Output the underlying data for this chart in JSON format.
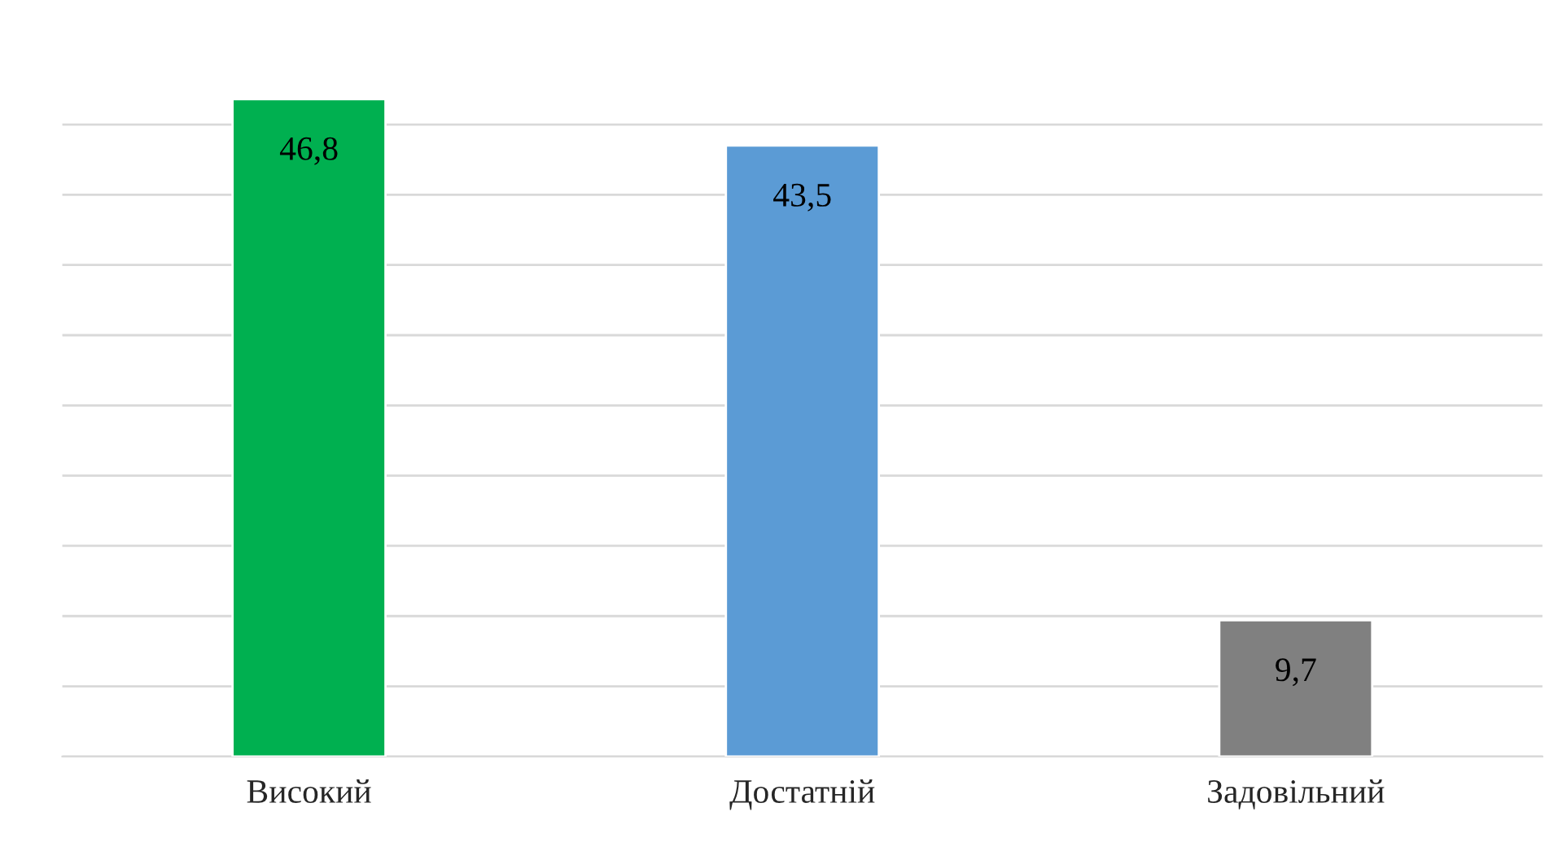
{
  "chart_data": {
    "type": "bar",
    "categories": [
      "Високий",
      "Достатній",
      "Задовільний"
    ],
    "values": [
      46.8,
      43.5,
      9.7
    ],
    "value_labels": [
      "46,8",
      "43,5",
      "9,7"
    ],
    "colors": [
      "#00b050",
      "#5b9bd5",
      "#808080"
    ],
    "tick_labels": "x",
    "grid": "y"
  }
}
